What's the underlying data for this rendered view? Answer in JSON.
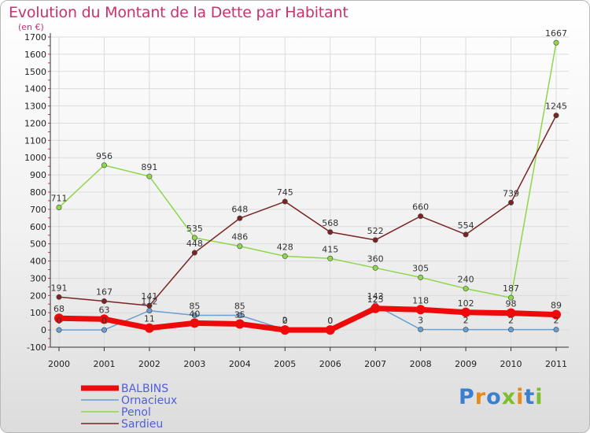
{
  "title": "Evolution du Montant de la Dette par Habitant",
  "unit_label": "(en €)",
  "logo_text": "Proxiti",
  "colors": {
    "title": "#c8326e",
    "legend_text": "#4f5fd8",
    "grid": "#dcdcdc",
    "axis_tick_marks": "#c8326e"
  },
  "chart_data": {
    "type": "line",
    "x": [
      "2000",
      "2001",
      "2002",
      "2003",
      "2004",
      "2005",
      "2006",
      "2007",
      "2008",
      "2009",
      "2010",
      "2011"
    ],
    "ylim": [
      -100,
      1700
    ],
    "yticks": [
      -100,
      0,
      100,
      200,
      300,
      400,
      500,
      600,
      700,
      800,
      900,
      1000,
      1100,
      1200,
      1300,
      1400,
      1500,
      1600,
      1700
    ],
    "grid": true,
    "legend_position": "bottom-left",
    "series": [
      {
        "name": "BALBINS",
        "color": "#ee0a0a",
        "line_width": 7,
        "marker": 6,
        "values": [
          68,
          63,
          11,
          40,
          35,
          0,
          0,
          125,
          118,
          102,
          98,
          89
        ]
      },
      {
        "name": "Ornacieux",
        "color": "#6a9fd0",
        "line_width": 1.5,
        "marker": 3.2,
        "values": [
          0,
          0,
          112,
          85,
          85,
          2,
          0,
          143,
          3,
          2,
          2,
          2
        ]
      },
      {
        "name": "Penol",
        "color": "#8ed64a",
        "line_width": 1.5,
        "marker": 3.2,
        "values": [
          711,
          956,
          891,
          535,
          486,
          428,
          415,
          360,
          305,
          240,
          187,
          1667
        ]
      },
      {
        "name": "Sardieu",
        "color": "#7a2525",
        "line_width": 1.5,
        "marker": 3.2,
        "values": [
          191,
          167,
          141,
          448,
          648,
          745,
          568,
          522,
          660,
          554,
          739,
          1245
        ]
      }
    ]
  }
}
